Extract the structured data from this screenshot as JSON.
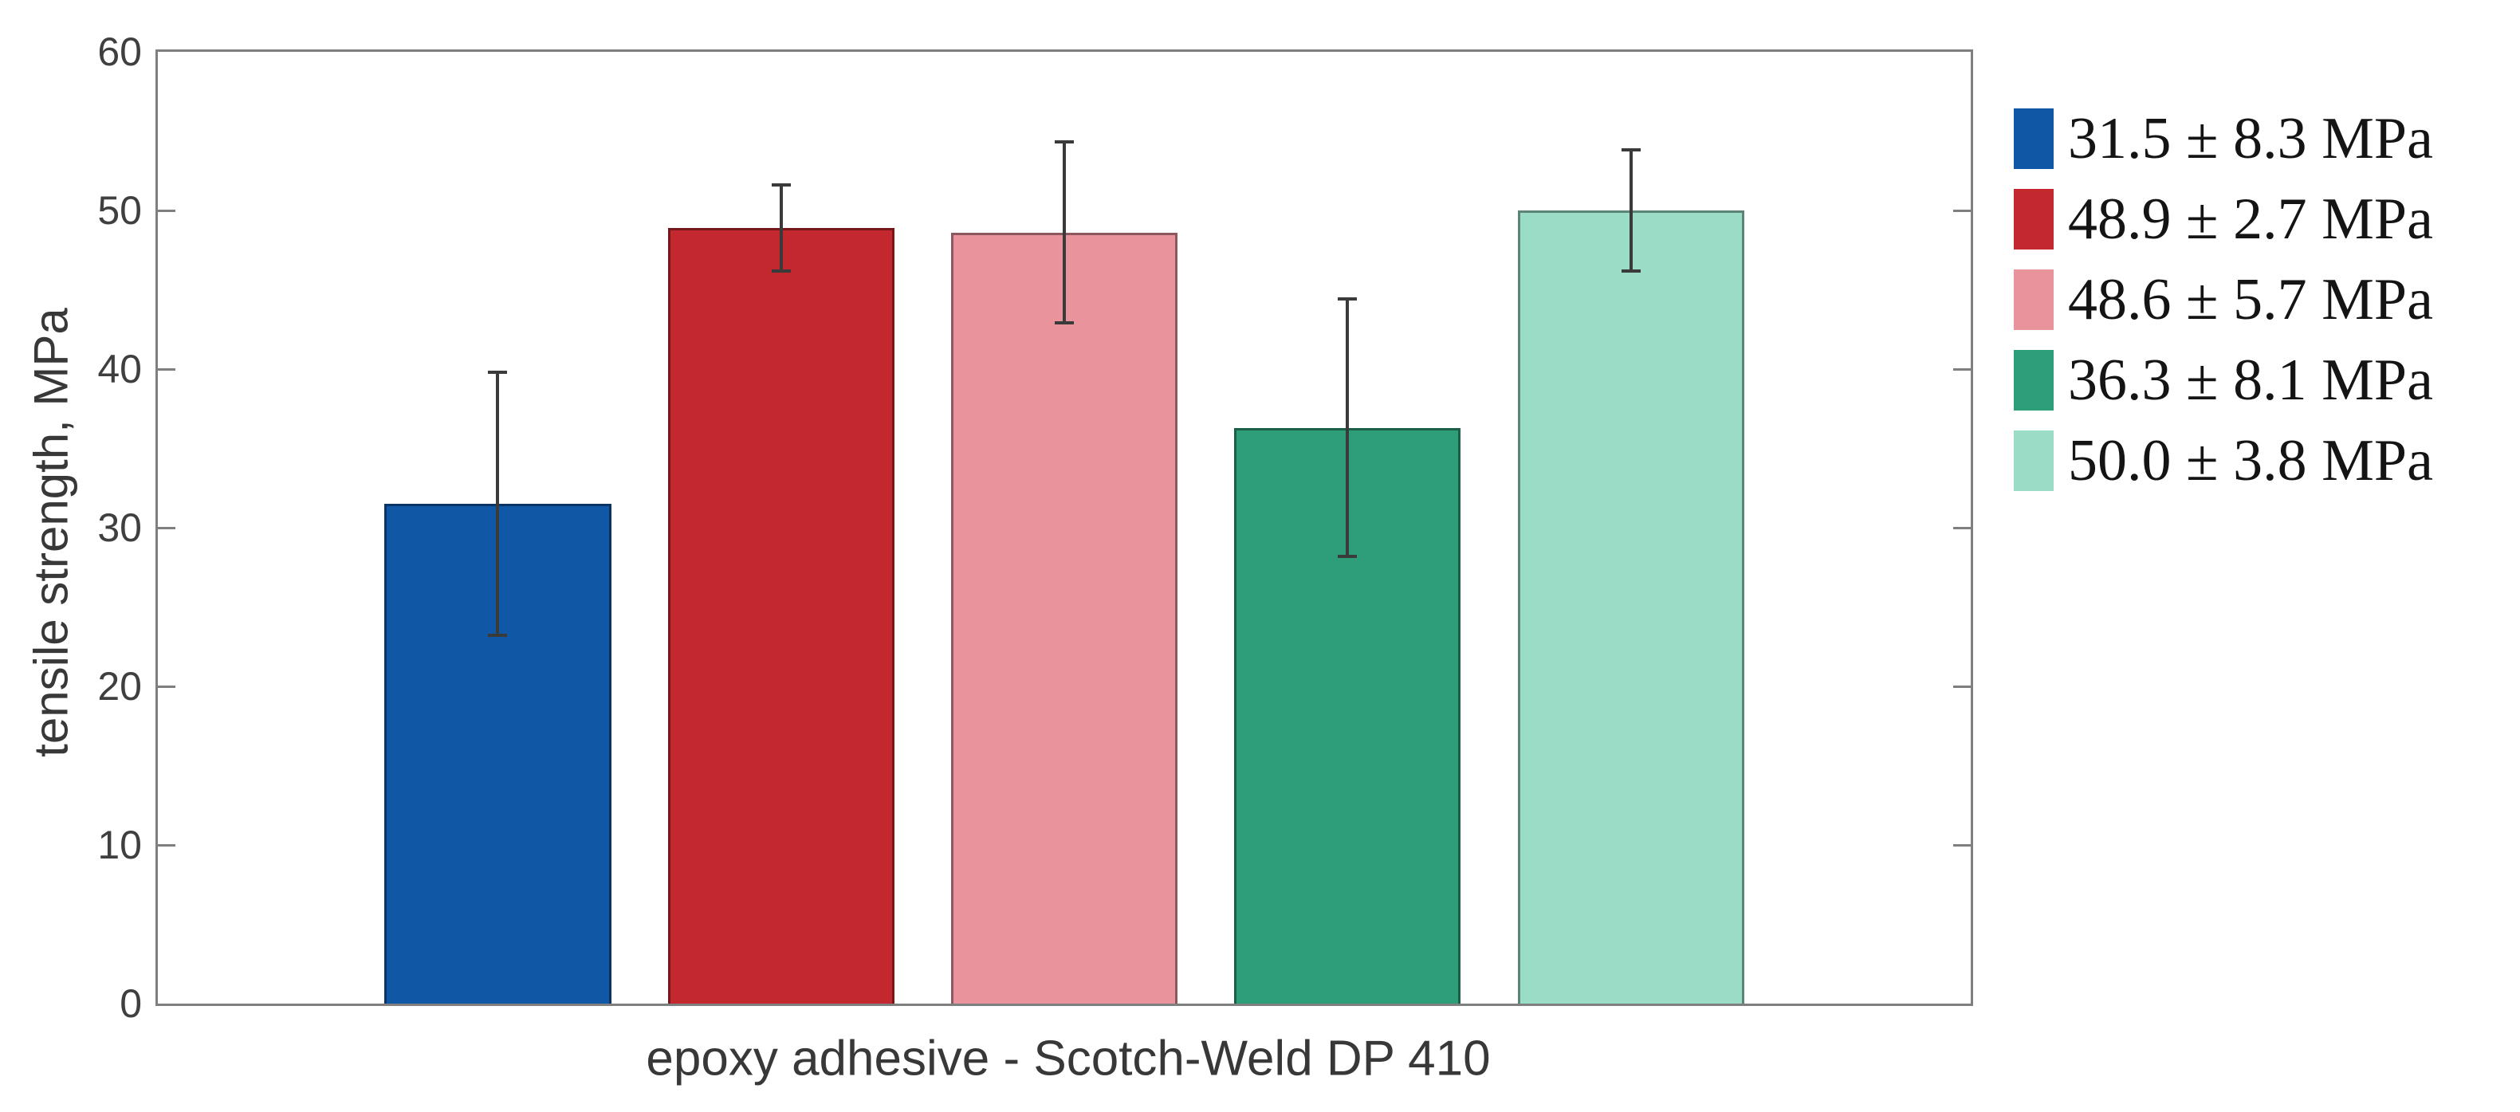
{
  "chart_data": {
    "type": "bar",
    "title": "",
    "xlabel": "epoxy adhesive - Scotch-Weld DP 410",
    "ylabel": "tensile strength, MPa",
    "ylim": [
      0,
      60
    ],
    "yticks": [
      0,
      10,
      20,
      30,
      40,
      50,
      60
    ],
    "categories": [
      "epoxy adhesive - Scotch-Weld DP 410"
    ],
    "grid": false,
    "legend_position": "right-outside",
    "axis_color": "#7f7f7f",
    "error_bar_color": "#3a3a3a",
    "series": [
      {
        "name": "31.5 ± 8.3 MPa",
        "value": 31.5,
        "error": 8.3,
        "color": "#1057A5"
      },
      {
        "name": "48.9 ± 2.7 MPa",
        "value": 48.9,
        "error": 2.7,
        "color": "#C2282E"
      },
      {
        "name": "48.6 ± 5.7 MPa",
        "value": 48.6,
        "error": 5.7,
        "color": "#E9939C"
      },
      {
        "name": "36.3 ± 8.1 MPa",
        "value": 36.3,
        "error": 8.1,
        "color": "#2E9E7A"
      },
      {
        "name": "50.0 ± 3.8 MPa",
        "value": 50.0,
        "error": 3.8,
        "color": "#9ADCC6"
      }
    ]
  }
}
